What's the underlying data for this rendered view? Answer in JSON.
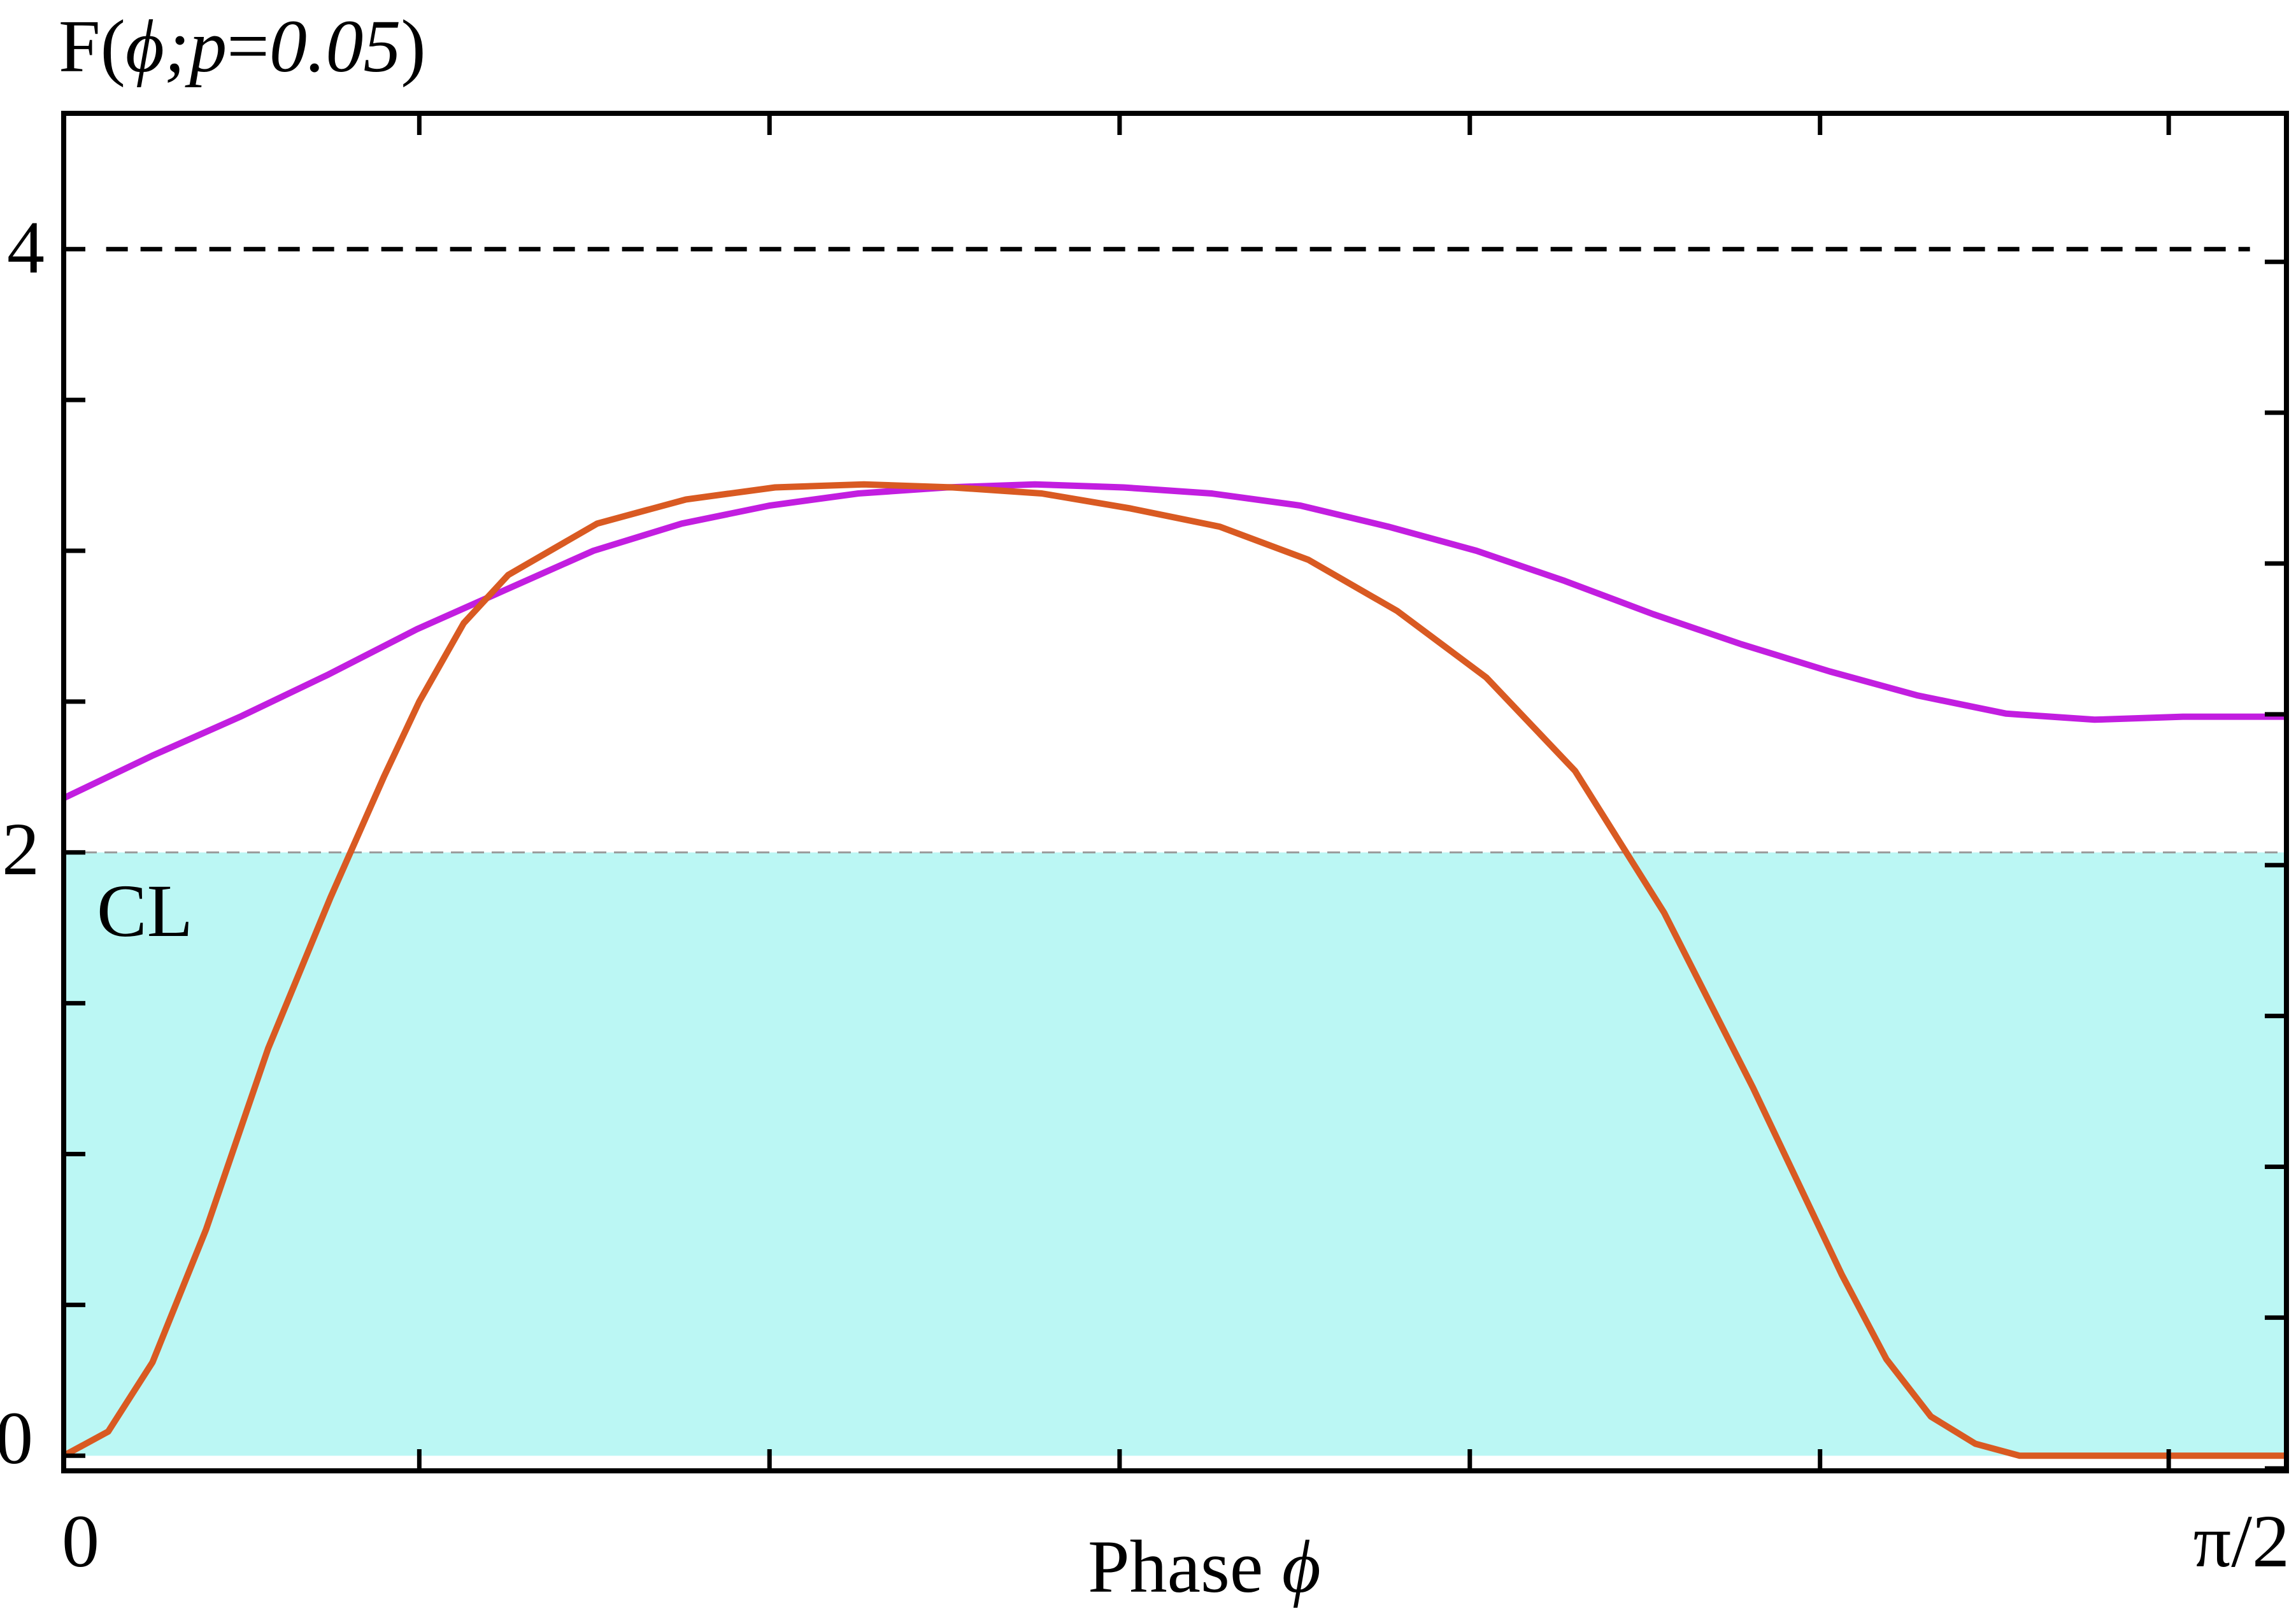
{
  "chart_data": {
    "type": "line",
    "title": "",
    "ylabel_parts": {
      "prefix": "F(",
      "var": "ϕ",
      "sep": ";",
      "param": "p",
      "eq": "=",
      "value": "0.05",
      "suffix": ")"
    },
    "xlabel_parts": {
      "text": "Phase ",
      "var": "ϕ"
    },
    "x_ticklabels": [
      {
        "label": "0",
        "value": 0
      },
      {
        "label": "π/2",
        "value": 1.5708
      }
    ],
    "y_ticklabels": [
      {
        "label": "0",
        "value": 0
      },
      {
        "label": "2",
        "value": 2
      },
      {
        "label": "4",
        "value": 4
      }
    ],
    "xlim": [
      0,
      1.5708
    ],
    "ylim": [
      -0.05,
      4.45
    ],
    "y_minor_ticks_left": [
      0.5,
      1.0,
      1.5,
      2.5,
      3.0,
      3.5
    ],
    "x_minor_ticks": [
      0.2513,
      0.4988,
      0.7462,
      0.9937,
      1.2412,
      1.4876
    ],
    "grid": false,
    "reference_lines": [
      {
        "y": 4,
        "style": "dashed",
        "color": "#000000"
      },
      {
        "y": 2,
        "style": "dashed-thin",
        "color": "#999999"
      }
    ],
    "shaded_region": {
      "y_from": 0,
      "y_to": 2,
      "color": "#bbf7f4",
      "label": "CL"
    },
    "series": [
      {
        "color": "#c21ee0",
        "style": "solid",
        "x": [
          0,
          0.0624,
          0.1248,
          0.1872,
          0.2496,
          0.312,
          0.3744,
          0.4368,
          0.4992,
          0.5616,
          0.624,
          0.6864,
          0.7488,
          0.8112,
          0.8736,
          0.936,
          0.9984,
          1.0608,
          1.1232,
          1.1856,
          1.248,
          1.3104,
          1.3728,
          1.4352,
          1.4976,
          1.5708
        ],
        "y": [
          2.18,
          2.32,
          2.45,
          2.59,
          2.74,
          2.87,
          3.0,
          3.09,
          3.15,
          3.19,
          3.21,
          3.22,
          3.21,
          3.19,
          3.15,
          3.08,
          3.0,
          2.9,
          2.79,
          2.69,
          2.6,
          2.52,
          2.46,
          2.44,
          2.45,
          2.45
        ]
      },
      {
        "color": "#d95a22",
        "style": "solid",
        "x": [
          0,
          0.0314,
          0.0628,
          0.1006,
          0.1445,
          0.1885,
          0.2262,
          0.2513,
          0.2827,
          0.3142,
          0.377,
          0.4398,
          0.5027,
          0.5655,
          0.6283,
          0.6912,
          0.754,
          0.8168,
          0.8796,
          0.9425,
          1.0053,
          1.0681,
          1.131,
          1.1938,
          1.2566,
          1.2881,
          1.3195,
          1.3509,
          1.3823,
          1.4137,
          1.4451,
          1.4766,
          1.508,
          1.5394,
          1.5708
        ],
        "y": [
          0.0,
          0.08,
          0.31,
          0.75,
          1.35,
          1.85,
          2.25,
          2.5,
          2.76,
          2.92,
          3.09,
          3.17,
          3.21,
          3.22,
          3.21,
          3.19,
          3.14,
          3.08,
          2.97,
          2.8,
          2.58,
          2.27,
          1.8,
          1.22,
          0.6,
          0.32,
          0.13,
          0.04,
          0.0,
          0.0,
          0.0,
          0.0,
          0.0,
          0.0,
          0.0
        ]
      }
    ]
  }
}
